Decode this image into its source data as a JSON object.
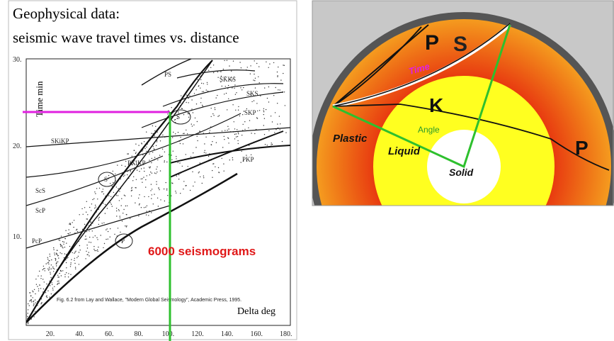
{
  "left_panel": {
    "title_lines": [
      "Geophysical data:",
      "seismic wave travel times vs. distance"
    ],
    "y_axis_label": "Time min",
    "x_axis_label": "Delta deg",
    "y_tick_labels": [
      "30.",
      "20.",
      "10."
    ],
    "x_tick_labels": [
      "20.",
      "40.",
      "60.",
      "80.",
      "100.",
      "120.",
      "140.",
      "160.",
      "180."
    ],
    "phase_labels": [
      "PS",
      "SKKS",
      "SKS",
      "SKP",
      "S",
      "SKiKP",
      "PKiKP",
      "PKP",
      "S",
      "ScS",
      "ScP",
      "PcP",
      "P"
    ],
    "annotation": "6000 seismograms",
    "caption": "Fig. 6.2 from Lay and Wallace, \"Modern Global Seismology\", Academic Press, 1995."
  },
  "right_panel": {
    "labels": {
      "p_top": "P",
      "s_top": "S",
      "time": "Time",
      "k": "K",
      "angle": "Angle",
      "plastic": "Plastic",
      "liquid": "Liquid",
      "solid": "Solid",
      "p_right": "P"
    }
  }
}
